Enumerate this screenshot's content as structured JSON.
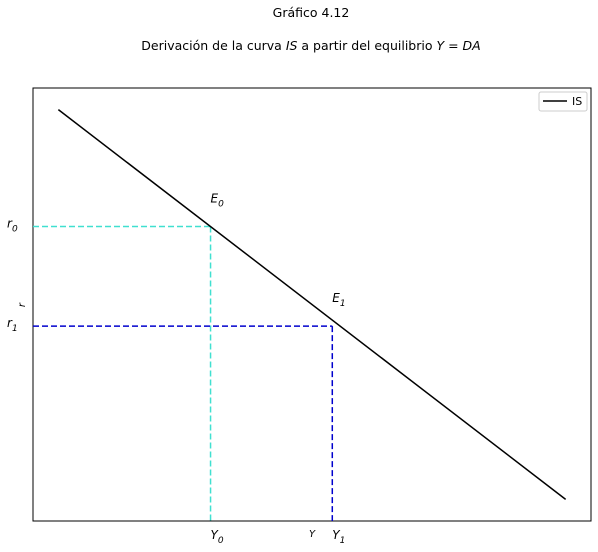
{
  "chart_data": {
    "type": "line",
    "title": "Gráfico 4.12",
    "subtitle": "Derivación de la curva IS a partir del equilibrio Y = DA",
    "xlabel": "Y",
    "ylabel": "r",
    "xlim": [
      0,
      110
    ],
    "ylim": [
      0,
      100
    ],
    "grid": false,
    "legend": {
      "position": "top-right",
      "entries": [
        "IS"
      ]
    },
    "series": [
      {
        "name": "IS",
        "x": [
          5,
          105
        ],
        "y": [
          95,
          5
        ],
        "color": "#000000"
      }
    ],
    "points": [
      {
        "label": "E0",
        "x_label": "Y0",
        "y_label": "r0",
        "x": 35,
        "y": 68,
        "color": "#40e0d0"
      },
      {
        "label": "E1",
        "x_label": "Y1",
        "y_label": "r1",
        "x": 59,
        "y": 45,
        "color": "#0000cd"
      }
    ]
  }
}
